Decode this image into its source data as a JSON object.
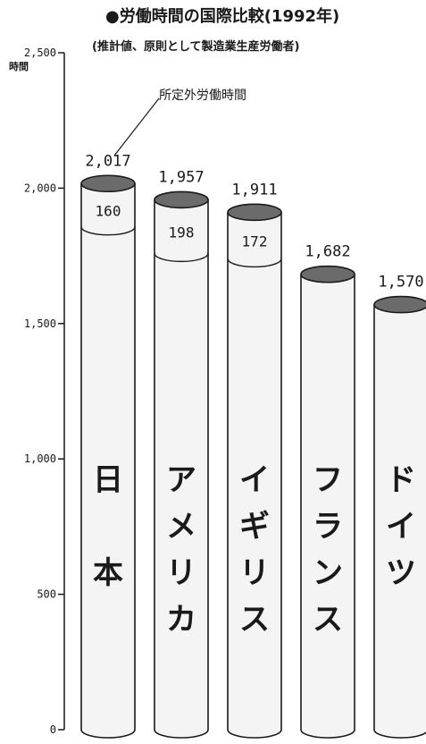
{
  "chart_data": {
    "type": "bar",
    "title": "●労働時間の国際比較(1992年)",
    "subtitle": "(推計値、原則として製造業生産労働者)",
    "y_unit": "時間",
    "ylim": [
      0,
      2500
    ],
    "yticks": [
      0,
      500,
      1000,
      1500,
      2000,
      2500
    ],
    "ytick_labels": [
      "0",
      "500",
      "1,000",
      "1,500",
      "2,000",
      "2,500"
    ],
    "categories": [
      "日本",
      "アメリカ",
      "イギリス",
      "フランス",
      "ドイツ"
    ],
    "total_labels": [
      "2,017",
      "1,957",
      "1,911",
      "1,682",
      "1,570"
    ],
    "series": [
      {
        "name": "",
        "values": [
          1857,
          1759,
          1739,
          1682,
          1570
        ]
      },
      {
        "name": "所定外労働時間",
        "values": [
          160,
          198,
          172,
          0,
          0
        ]
      }
    ],
    "totals": [
      2017,
      1957,
      1911,
      1682,
      1570
    ],
    "overtime_labels": [
      "160",
      "198",
      "172",
      "",
      ""
    ],
    "annotation": "所定外労働時間",
    "colors": {
      "bar": "#f4f4f4",
      "cap": "#6b6b6b",
      "stroke": "#1a1a1a"
    }
  }
}
